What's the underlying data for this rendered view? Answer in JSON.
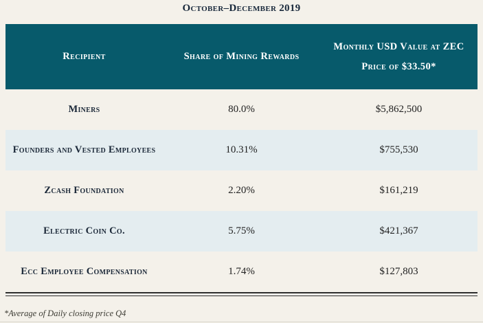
{
  "page": {
    "title": "October–December 2019",
    "footnote": "*Average of Daily closing price Q4"
  },
  "table": {
    "header": {
      "recipient": "Recipient",
      "share": "Share of Mining Rewards",
      "usd_line1": "Monthly USD Value at ZEC",
      "usd_line2": "Price of $33.50*"
    },
    "rows": [
      {
        "recipient": "Miners",
        "share": "80.0%",
        "usd_value": "$5,862,500"
      },
      {
        "recipient": "Founders and Vested Employees",
        "share": "10.31%",
        "usd_value": "$755,530"
      },
      {
        "recipient": "Zcash Foundation",
        "share": "2.20%",
        "usd_value": "$161,219"
      },
      {
        "recipient": "Electric Coin Co.",
        "share": "5.75%",
        "usd_value": "$421,367"
      },
      {
        "recipient": "Ecc Employee Compensation",
        "share": "1.74%",
        "usd_value": "$127,803"
      }
    ]
  },
  "colors": {
    "header_bg": "#075a6b",
    "header_text": "#ffffff",
    "row_cream_bg": "#f4f1ea",
    "row_blue_bg": "#e4edf0",
    "label_text": "#1b2838",
    "value_text": "#212121",
    "page_bg": "#f4f1ea"
  }
}
